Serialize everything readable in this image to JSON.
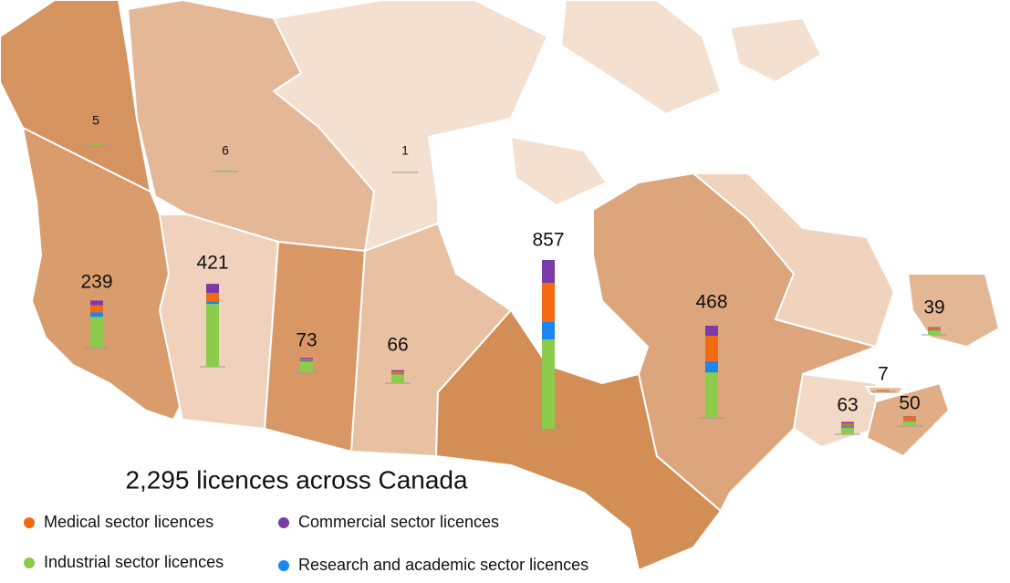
{
  "chart_data": {
    "type": "stacked-bar-map",
    "title": "2,295 licences across Canada",
    "totals": [
      5,
      6,
      1,
      239,
      421,
      73,
      66,
      857,
      468,
      63,
      7,
      50,
      39
    ],
    "series": [
      {
        "name": "Medical sector licences",
        "color": "#f26b10",
        "values": [
          0,
          0,
          0,
          37,
          42,
          8,
          10,
          199,
          130,
          15,
          5,
          20,
          10
        ]
      },
      {
        "name": "Commercial sector licences",
        "color": "#7b3aa8",
        "values": [
          0,
          0,
          0,
          23,
          46,
          5,
          6,
          116,
          51,
          7,
          0,
          2,
          3
        ]
      },
      {
        "name": "Industrial sector licences",
        "color": "#8dcc4a",
        "values": [
          5,
          6,
          1,
          156,
          319,
          55,
          45,
          454,
          231,
          33,
          1,
          25,
          22
        ]
      },
      {
        "name": "Research and academic sector licences",
        "color": "#1a86f0",
        "values": [
          0,
          0,
          0,
          23,
          14,
          5,
          5,
          88,
          56,
          8,
          1,
          3,
          4
        ]
      }
    ]
  }
}
